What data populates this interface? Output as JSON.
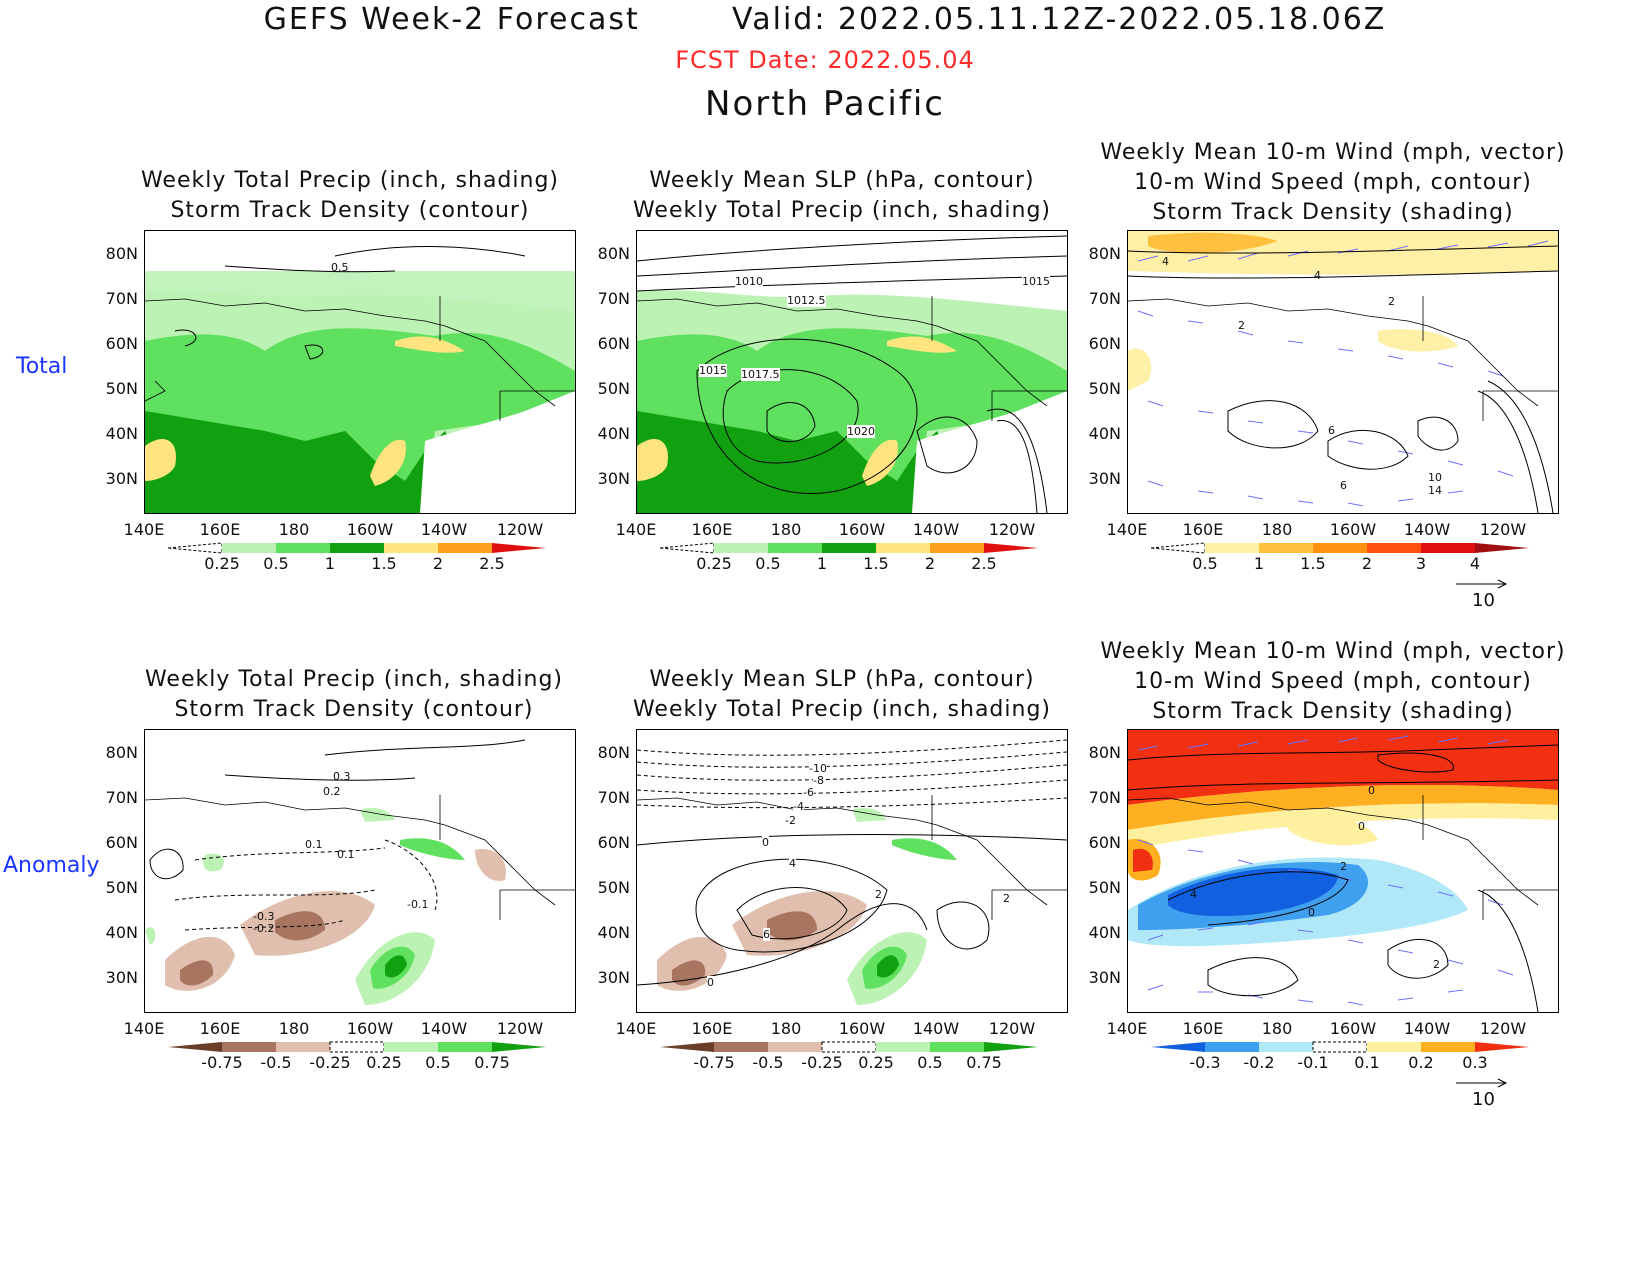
{
  "header": {
    "title": "GEFS Week-2 Forecast        Valid: 2022.05.11.12Z-2022.05.18.06Z",
    "fcst_date": "FCST Date: 2022.05.04",
    "region": "North Pacific"
  },
  "rows": {
    "total": "Total",
    "anomaly": "Anomaly"
  },
  "titles": {
    "precip_storm": [
      "Weekly Total Precip (inch, shading)",
      "Storm Track Density (contour)"
    ],
    "slp_precip": [
      "Weekly Mean SLP (hPa, contour)",
      "Weekly Total Precip (inch, shading)"
    ],
    "wind_storm": [
      "Weekly Mean 10-m Wind (mph, vector)",
      "10-m Wind Speed (mph, contour)",
      "Storm Track Density (shading)"
    ]
  },
  "axes": {
    "lat_labels": [
      "80N",
      "70N",
      "60N",
      "50N",
      "40N",
      "30N"
    ],
    "lon_labels": [
      "140E",
      "160E",
      "180",
      "160W",
      "140W",
      "120W"
    ]
  },
  "colorbars": {
    "total_precip": {
      "labels": [
        "0.25",
        "0.5",
        "1",
        "1.5",
        "2",
        "2.5"
      ],
      "colors": [
        "#ffffff",
        "#bdf2b5",
        "#5fe05f",
        "#10a010",
        "#ffe480",
        "#ffa020",
        "#e01010"
      ]
    },
    "total_storm": {
      "labels": [
        "0.5",
        "1",
        "1.5",
        "2",
        "3",
        "4"
      ],
      "colors": [
        "#ffffff",
        "#fff0a8",
        "#ffc040",
        "#ff9010",
        "#ff5010",
        "#e01010",
        "#a01010"
      ]
    },
    "anom_precip": {
      "labels": [
        "-0.75",
        "-0.5",
        "-0.25",
        "0.25",
        "0.5",
        "0.75"
      ],
      "colors": [
        "#6b3e2a",
        "#a87560",
        "#e0bfae",
        "#ffffff",
        "#bdf2b5",
        "#5fe05f",
        "#10a010"
      ]
    },
    "anom_storm": {
      "labels": [
        "-0.3",
        "-0.2",
        "-0.1",
        "0.1",
        "0.2",
        "0.3"
      ],
      "colors": [
        "#1060e0",
        "#40a0f0",
        "#b0e8f8",
        "#ffffff",
        "#fff0a0",
        "#ffb020",
        "#f03010"
      ]
    }
  },
  "vector_ref": "10",
  "contour_labels": {
    "p1": [
      "0.5"
    ],
    "p2": [
      "1010",
      "1012.5",
      "1015",
      "1015",
      "1017.5",
      "1020"
    ],
    "p3": [
      "4",
      "4",
      "2",
      "2",
      "6",
      "10",
      "14",
      "6"
    ],
    "p4": [
      "0.3",
      "0.2",
      "0.1",
      "0.1",
      "-0.3",
      "-0.2",
      "-0.1"
    ],
    "p5": [
      "-10",
      "-8",
      "-6",
      "-4",
      "-2",
      "0",
      "4",
      "6",
      "2",
      "0",
      "2"
    ],
    "p6": [
      "0",
      "0",
      "2",
      "4",
      "0",
      "2"
    ]
  }
}
